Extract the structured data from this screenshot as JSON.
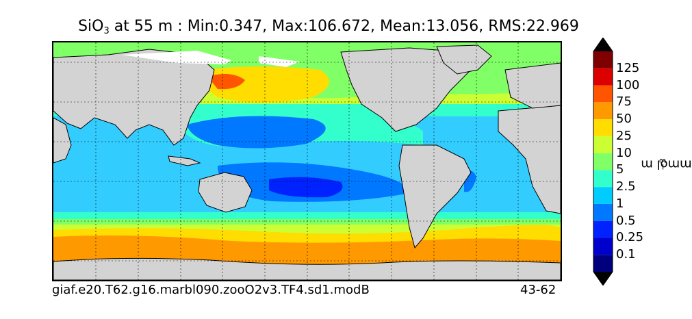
{
  "title": {
    "variable": "SiO",
    "subscript": "3",
    "rest": " at 55 m : Min:0.347, Max:106.672, Mean:13.056, RMS:22.969"
  },
  "footer": {
    "case_name": "giaf.e20.T62.g16.marbl090.zooO2v3.TF4.sd1.modB",
    "years": "43-62"
  },
  "colorbar": {
    "unit_prefix": "mmol m",
    "unit_exponent": "−3",
    "levels": [
      "0.1",
      "0.25",
      "0.5",
      "1",
      "2.5",
      "5",
      "10",
      "25",
      "50",
      "75",
      "100",
      "125"
    ],
    "colors": [
      "#00007f",
      "#0000cc",
      "#0022ff",
      "#0078ff",
      "#00ccff",
      "#33ffcc",
      "#80ff66",
      "#ccff33",
      "#ffdd00",
      "#ff9900",
      "#ff5500",
      "#dd0000",
      "#7f0000"
    ],
    "extend": "both"
  },
  "map": {
    "land_color": "#d3d3d3",
    "gridlines": "dotted"
  }
}
